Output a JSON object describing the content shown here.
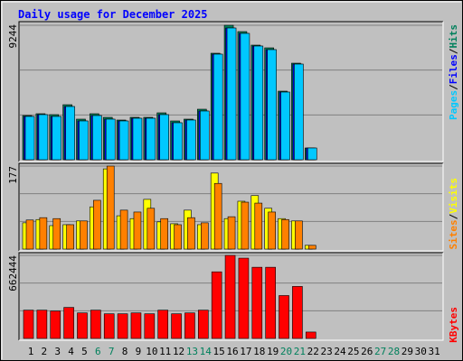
{
  "chart_data": {
    "type": "bar",
    "title": "Daily usage for December 2025",
    "categories": [
      "1",
      "2",
      "3",
      "4",
      "5",
      "6",
      "7",
      "8",
      "9",
      "10",
      "11",
      "12",
      "13",
      "14",
      "15",
      "16",
      "17",
      "18",
      "19",
      "20",
      "21",
      "22",
      "23",
      "24",
      "25",
      "26",
      "27",
      "28",
      "29",
      "30",
      "31"
    ],
    "legend_separator": "/",
    "panels": [
      {
        "ylim": [
          0,
          9244
        ],
        "yticks": [
          9244
        ],
        "grid": true,
        "series": [
          {
            "name": "Hits",
            "color": "#00805c",
            "values": [
              3040,
              3164,
              3102,
              3784,
              2792,
              3164,
              2916,
              2730,
              2916,
              2916,
              3226,
              2668,
              2792,
              3474,
              7321,
              9244,
              8810,
              7879,
              7693,
              4715,
              6638,
              807,
              0,
              0,
              0,
              0,
              0,
              0,
              0,
              0,
              0
            ]
          },
          {
            "name": "Files",
            "color": "#0000ff",
            "values": [
              2978,
              3102,
              2978,
              3660,
              2668,
              3040,
              2792,
              2668,
              2854,
              2854,
              3102,
              2544,
              2730,
              3350,
              7259,
              9058,
              8686,
              7817,
              7569,
              4653,
              6576,
              807,
              0,
              0,
              0,
              0,
              0,
              0,
              0,
              0,
              0
            ]
          },
          {
            "name": "Pages",
            "color": "#00c8ff",
            "values": [
              2978,
              3102,
              2978,
              3660,
              2668,
              3040,
              2792,
              2668,
              2854,
              2854,
              3102,
              2544,
              2730,
              3350,
              7259,
              9058,
              8686,
              7817,
              7569,
              4653,
              6576,
              807,
              0,
              0,
              0,
              0,
              0,
              0,
              0,
              0,
              0
            ]
          }
        ]
      },
      {
        "ylim": [
          0,
          177
        ],
        "yticks": [
          177
        ],
        "grid": true,
        "series": [
          {
            "name": "Visits",
            "color": "#ffff00",
            "values": [
              56,
              63,
              50,
              52,
              60,
              90,
              171,
              71,
              65,
              106,
              58,
              54,
              83,
              52,
              162,
              65,
              102,
              114,
              87,
              65,
              60,
              8,
              0,
              0,
              0,
              0,
              0,
              0,
              0,
              0,
              0
            ]
          },
          {
            "name": "Sites",
            "color": "#ff8000",
            "values": [
              62,
              67,
              65,
              52,
              60,
              104,
              177,
              83,
              79,
              87,
              65,
              52,
              67,
              56,
              140,
              69,
              100,
              98,
              79,
              63,
              60,
              8,
              0,
              0,
              0,
              0,
              0,
              0,
              0,
              0,
              0
            ]
          }
        ]
      },
      {
        "ylim": [
          0,
          662444
        ],
        "yticks": [
          662444
        ],
        "grid": true,
        "series": [
          {
            "name": "KBytes",
            "color": "#ff0000",
            "values": [
              225680,
              225680,
              218400,
              247520,
              203840,
              225680,
              196560,
              196560,
              203840,
              196560,
              225680,
              196560,
              203840,
              225680,
              531440,
              662444,
              640640,
              567840,
              567840,
              342160,
              414960,
              50960,
              0,
              0,
              0,
              0,
              0,
              0,
              0,
              0,
              0
            ]
          }
        ]
      }
    ]
  }
}
